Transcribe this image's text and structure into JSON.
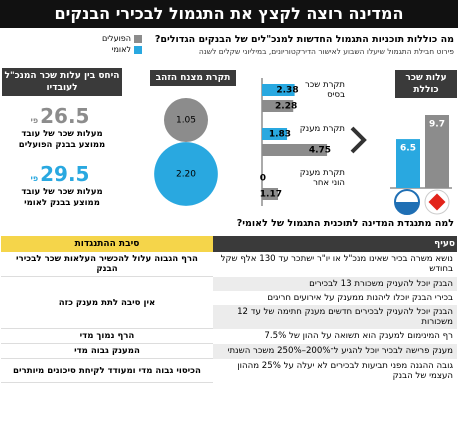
{
  "title": "המדינה רוצה לקצץ את התגמול לבכירי הבנקים",
  "question": "מה כוללות תוכניות התגמול החדשות למנכ\"לים של הבנקים הגדולים?",
  "subtitle": "פירוט חבילת התגמול שיעלו השבוע לאישור הדירקטוריונים, במיליוני שקלים לשנה",
  "legend": [
    {
      "name": "הפועלים",
      "color": "#8c8c8c"
    },
    {
      "name": "לאומי",
      "color": "#29a8e0"
    }
  ],
  "total_cost": {
    "title": "עלות שכר כוללת",
    "values": [
      9.7,
      6.5
    ]
  },
  "caps": {
    "categories": [
      "תקרת שכר בסיס",
      "תקרת מענק",
      "תקרת מענק הוני אחר"
    ],
    "series": [
      {
        "name": "לאומי",
        "values": [
          2.38,
          1.83,
          0
        ]
      },
      {
        "name": "הפועלים",
        "values": [
          2.28,
          4.75,
          1.17
        ]
      }
    ]
  },
  "golden_parachute": {
    "title": "תקרת מצנח הזהב",
    "values": [
      1.05,
      2.2
    ],
    "value_labels": [
      "1.05",
      "2.20"
    ]
  },
  "ratio": {
    "title": "היחס בין עלות שכר המנכ\"ל לעובדיו",
    "prefix": "פי",
    "items": [
      {
        "value": 26.5,
        "text": "מעלות שכר של עובד ממוצע בבנק הפועלים"
      },
      {
        "value": 29.5,
        "text": "מעלות שכר של עובד ממוצע בבנק לאומי"
      }
    ]
  },
  "question2": "למה מתנגדת המדינה לתוכנית התגמול של לאומי?",
  "table": {
    "headers": [
      "סעיף",
      "סיבת ההתנגדות"
    ],
    "rows": [
      "נושא משרה בכיר שאינו מנכ\"ל או יו\"ר ישתכר עד 130 אלף שקל בחודש",
      "הבנק יוכל להעניק משכורת 13 לבכירים",
      "בכירי הבנק יוכלו ליהנות ממענק על אירועים חריגים",
      "הבנק יוכל להעניק לבכירים חדשים מענק חתימה של עד 12 משכורות",
      "רף המינימום למענק הוא תשואה על ההון של 7.5%",
      "מענק פרישה לבכיר יוכל להגיע ל־200%–250% משכר השנתי",
      "גובה ההגנה מפני תביעות לבכירים לא יעלה על 25% מההון העצמי של הבנק"
    ],
    "reasons": [
      "הרף הגבוה עלול להכשיר העלאות שכר לבכירי הבנק",
      "אין סיבה לתת מענק כזה",
      "הרף נמוך מדי",
      "המענק גבוה מדי",
      "הכיסוי גבוה מדי ומעודד לקיחת סיכונים מיותרים"
    ]
  }
}
